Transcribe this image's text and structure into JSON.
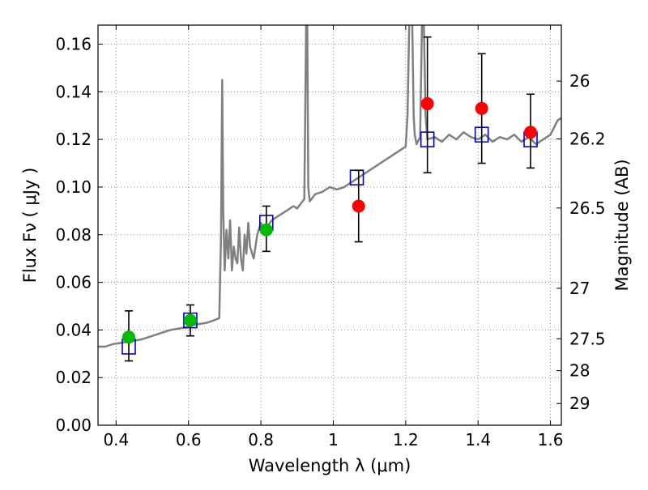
{
  "chart_data": {
    "type": "scatter",
    "xlabel": "Wavelength  λ (μm)",
    "ylabel": "Flux  Fν  ( μJy )",
    "ylabel_right": "Magnitude (AB)",
    "xlim": [
      0.35,
      1.63
    ],
    "ylim": [
      0.0,
      0.168
    ],
    "grid": true,
    "x_ticks": [
      {
        "value": 0.4,
        "label": "0.4"
      },
      {
        "value": 0.6,
        "label": "0.6"
      },
      {
        "value": 0.8,
        "label": "0.8"
      },
      {
        "value": 1.0,
        "label": "1"
      },
      {
        "value": 1.2,
        "label": "1.2"
      },
      {
        "value": 1.4,
        "label": "1.4"
      },
      {
        "value": 1.6,
        "label": "1.6"
      }
    ],
    "y_ticks": [
      {
        "value": 0.0,
        "label": "0.00"
      },
      {
        "value": 0.02,
        "label": "0.02"
      },
      {
        "value": 0.04,
        "label": "0.04"
      },
      {
        "value": 0.06,
        "label": "0.06"
      },
      {
        "value": 0.08,
        "label": "0.08"
      },
      {
        "value": 0.1,
        "label": "0.10"
      },
      {
        "value": 0.12,
        "label": "0.12"
      },
      {
        "value": 0.14,
        "label": "0.14"
      },
      {
        "value": 0.16,
        "label": "0.16"
      }
    ],
    "right_ticks": [
      {
        "flux": 0.1445,
        "label": "26"
      },
      {
        "flux": 0.1202,
        "label": "26.2"
      },
      {
        "flux": 0.0912,
        "label": "26.5"
      },
      {
        "flux": 0.0575,
        "label": "27"
      },
      {
        "flux": 0.0363,
        "label": "27.5"
      },
      {
        "flux": 0.0229,
        "label": "28"
      },
      {
        "flux": 0.0091,
        "label": "29"
      }
    ],
    "colors": {
      "spectrum": "#808080",
      "model_box": "#0000cc",
      "optical": "#00bb00",
      "nir": "#ff0000",
      "errorbar": "#000000"
    },
    "spectrum": [
      [
        0.35,
        0.033
      ],
      [
        0.37,
        0.033
      ],
      [
        0.39,
        0.034
      ],
      [
        0.41,
        0.0345
      ],
      [
        0.43,
        0.035
      ],
      [
        0.45,
        0.0355
      ],
      [
        0.47,
        0.036
      ],
      [
        0.49,
        0.037
      ],
      [
        0.51,
        0.038
      ],
      [
        0.53,
        0.039
      ],
      [
        0.55,
        0.04
      ],
      [
        0.57,
        0.0405
      ],
      [
        0.59,
        0.041
      ],
      [
        0.61,
        0.042
      ],
      [
        0.63,
        0.0425
      ],
      [
        0.65,
        0.043
      ],
      [
        0.67,
        0.044
      ],
      [
        0.685,
        0.045
      ],
      [
        0.69,
        0.08
      ],
      [
        0.693,
        0.145
      ],
      [
        0.696,
        0.09
      ],
      [
        0.7,
        0.065
      ],
      [
        0.705,
        0.082
      ],
      [
        0.71,
        0.07
      ],
      [
        0.715,
        0.086
      ],
      [
        0.72,
        0.065
      ],
      [
        0.725,
        0.075
      ],
      [
        0.73,
        0.07
      ],
      [
        0.735,
        0.068
      ],
      [
        0.74,
        0.083
      ],
      [
        0.745,
        0.07
      ],
      [
        0.75,
        0.065
      ],
      [
        0.755,
        0.08
      ],
      [
        0.76,
        0.072
      ],
      [
        0.765,
        0.085
      ],
      [
        0.77,
        0.075
      ],
      [
        0.78,
        0.07
      ],
      [
        0.79,
        0.08
      ],
      [
        0.8,
        0.085
      ],
      [
        0.81,
        0.082
      ],
      [
        0.82,
        0.084
      ],
      [
        0.83,
        0.086
      ],
      [
        0.85,
        0.088
      ],
      [
        0.87,
        0.09
      ],
      [
        0.89,
        0.092
      ],
      [
        0.9,
        0.091
      ],
      [
        0.91,
        0.093
      ],
      [
        0.92,
        0.095
      ],
      [
        0.925,
        0.17
      ],
      [
        0.928,
        0.17
      ],
      [
        0.931,
        0.1
      ],
      [
        0.935,
        0.094
      ],
      [
        0.95,
        0.097
      ],
      [
        0.97,
        0.098
      ],
      [
        0.99,
        0.1
      ],
      [
        1.01,
        0.099
      ],
      [
        1.03,
        0.1
      ],
      [
        1.05,
        0.102
      ],
      [
        1.07,
        0.104
      ],
      [
        1.09,
        0.106
      ],
      [
        1.11,
        0.108
      ],
      [
        1.13,
        0.11
      ],
      [
        1.15,
        0.112
      ],
      [
        1.17,
        0.114
      ],
      [
        1.19,
        0.116
      ],
      [
        1.2,
        0.117
      ],
      [
        1.205,
        0.13
      ],
      [
        1.21,
        0.17
      ],
      [
        1.218,
        0.17
      ],
      [
        1.222,
        0.13
      ],
      [
        1.225,
        0.122
      ],
      [
        1.23,
        0.118
      ],
      [
        1.24,
        0.121
      ],
      [
        1.245,
        0.17
      ],
      [
        1.25,
        0.17
      ],
      [
        1.255,
        0.13
      ],
      [
        1.26,
        0.12
      ],
      [
        1.28,
        0.121
      ],
      [
        1.3,
        0.119
      ],
      [
        1.32,
        0.122
      ],
      [
        1.34,
        0.12
      ],
      [
        1.36,
        0.123
      ],
      [
        1.38,
        0.121
      ],
      [
        1.4,
        0.12
      ],
      [
        1.42,
        0.122
      ],
      [
        1.44,
        0.119
      ],
      [
        1.46,
        0.121
      ],
      [
        1.48,
        0.12
      ],
      [
        1.5,
        0.122
      ],
      [
        1.52,
        0.119
      ],
      [
        1.54,
        0.121
      ],
      [
        1.56,
        0.118
      ],
      [
        1.58,
        0.12
      ],
      [
        1.6,
        0.122
      ],
      [
        1.62,
        0.128
      ],
      [
        1.63,
        0.129
      ]
    ],
    "model_boxes": [
      {
        "x": 0.435,
        "y": 0.033
      },
      {
        "x": 0.605,
        "y": 0.044
      },
      {
        "x": 0.815,
        "y": 0.085
      },
      {
        "x": 1.065,
        "y": 0.104
      },
      {
        "x": 1.26,
        "y": 0.12
      },
      {
        "x": 1.41,
        "y": 0.122
      },
      {
        "x": 1.545,
        "y": 0.12
      }
    ],
    "observed_optical": [
      {
        "x": 0.435,
        "y": 0.037,
        "err_lo": 0.027,
        "err_hi": 0.048
      },
      {
        "x": 0.605,
        "y": 0.044,
        "err_lo": 0.0375,
        "err_hi": 0.0505
      },
      {
        "x": 0.815,
        "y": 0.082,
        "err_lo": 0.073,
        "err_hi": 0.092
      }
    ],
    "observed_nir": [
      {
        "x": 1.07,
        "y": 0.092,
        "err_lo": 0.077,
        "err_hi": 0.107
      },
      {
        "x": 1.26,
        "y": 0.135,
        "err_lo": 0.106,
        "err_hi": 0.163
      },
      {
        "x": 1.41,
        "y": 0.133,
        "err_lo": 0.11,
        "err_hi": 0.156
      },
      {
        "x": 1.545,
        "y": 0.123,
        "err_lo": 0.108,
        "err_hi": 0.139
      }
    ]
  }
}
